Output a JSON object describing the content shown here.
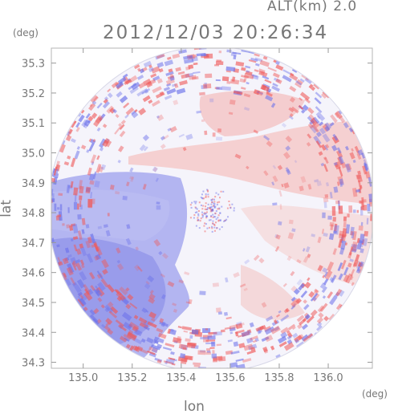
{
  "header": {
    "altitude": "ALT(km) 2.0",
    "timestamp": "2012/12/03 20:26:34"
  },
  "axes": {
    "y_unit": "(deg)",
    "x_unit": "(deg)",
    "y_title": "lat",
    "x_title": "lon",
    "x_ticks": [
      "135.0",
      "135.2",
      "135.4",
      "135.6",
      "135.8",
      "136.0"
    ],
    "y_ticks": [
      "35.3",
      "35.2",
      "35.1",
      "35.0",
      "34.9",
      "34.8",
      "34.7",
      "34.6",
      "34.5",
      "34.4",
      "34.3"
    ]
  },
  "chart_data": {
    "type": "heatmap",
    "xlabel": "lon",
    "ylabel": "lat",
    "xlim": [
      134.87,
      136.18
    ],
    "ylim": [
      34.28,
      35.35
    ],
    "x_ticks": [
      135.0,
      135.2,
      135.4,
      135.6,
      135.8,
      136.0
    ],
    "y_ticks": [
      34.3,
      34.4,
      34.5,
      34.6,
      34.7,
      34.8,
      34.9,
      35.0,
      35.1,
      35.2,
      35.3
    ],
    "radar_center": [
      135.53,
      34.82
    ],
    "colors": {
      "negative": "#6f74ea",
      "positive": "#ef5a5a",
      "zero": "#f5f4fb"
    }
  }
}
